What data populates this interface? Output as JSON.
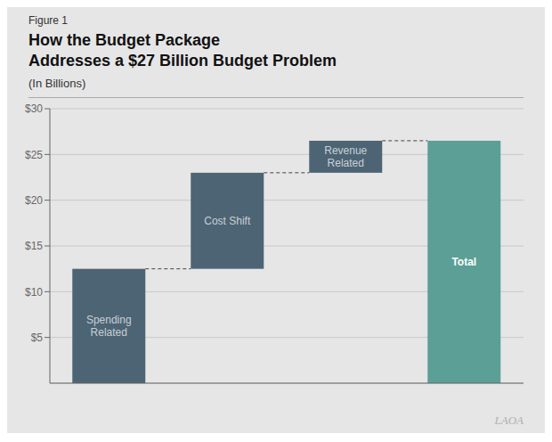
{
  "chart_data": {
    "type": "waterfall",
    "title": "How the Budget Package\nAddresses a $27 Billion Budget Problem",
    "subtitle": "(In Billions)",
    "annotations": [
      "Figure 1",
      "LAOA"
    ],
    "categories": [
      "Spending\nRelated",
      "Cost Shift",
      "Revenue\nRelated",
      "Total"
    ],
    "values": [
      12.5,
      10.5,
      3.5,
      26.5
    ],
    "colors": [
      "#4d6475",
      "#4d6475",
      "#4d6475",
      "#5b9f96"
    ],
    "ylim": [
      0,
      30
    ],
    "yticks": [
      {
        "value": 5,
        "label": "$5"
      },
      {
        "value": 10,
        "label": "$10"
      },
      {
        "value": 15,
        "label": "$15"
      },
      {
        "value": 20,
        "label": "$20"
      },
      {
        "value": 25,
        "label": "$25"
      },
      {
        "value": 30,
        "label": "$30"
      }
    ],
    "grid": true,
    "tick_labels": "y"
  }
}
